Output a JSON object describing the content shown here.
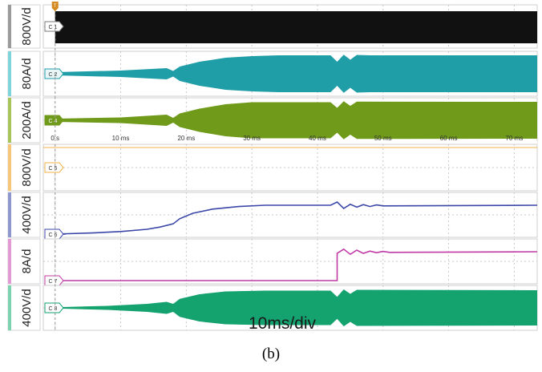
{
  "caption": "(b)",
  "timebase_label": "10ms/div",
  "trigger_marker": "T",
  "chart_data": {
    "type": "line",
    "title": "",
    "xlabel": "",
    "x_unit": "ms",
    "xlim": [
      -1.8,
      73.5
    ],
    "x_ticks": [
      {
        "value": 0,
        "label": "0 s"
      },
      {
        "value": 10,
        "label": "10 ms"
      },
      {
        "value": 20,
        "label": "20 ms"
      },
      {
        "value": 30,
        "label": "30 ms"
      },
      {
        "value": 40,
        "label": "40 ms"
      },
      {
        "value": 50,
        "label": "50 ms"
      },
      {
        "value": 60,
        "label": "60 ms"
      },
      {
        "value": 70,
        "label": "70 ms"
      }
    ],
    "grid": true,
    "channels": [
      {
        "name": "C 1",
        "scale": "800V/d",
        "color": "#111111",
        "badge_color": "#ffffff",
        "edge_color": "#9a9a9a",
        "kind": "block",
        "start_ms": 0
      },
      {
        "name": "C 2",
        "scale": "80A/d",
        "color": "#1f9ea8",
        "badge_color": "#e8f6f7",
        "edge_color": "#7fd3da",
        "kind": "envelope",
        "envelope": [
          [
            0,
            0.08
          ],
          [
            10,
            0.16
          ],
          [
            17,
            0.28
          ],
          [
            18,
            0.14
          ],
          [
            19,
            0.36
          ],
          [
            22,
            0.6
          ],
          [
            26,
            0.8
          ],
          [
            30,
            0.88
          ],
          [
            34,
            0.92
          ],
          [
            42,
            0.92
          ],
          [
            43,
            0.6
          ],
          [
            44,
            0.95
          ],
          [
            45,
            0.7
          ],
          [
            46,
            0.94
          ],
          [
            48,
            0.92
          ],
          [
            73.5,
            0.92
          ]
        ]
      },
      {
        "name": "C 4",
        "scale": "200A/d",
        "color": "#6f9a1a",
        "badge_color": "#6f9a1a",
        "edge_color": "#a6c45a",
        "kind": "envelope",
        "envelope": [
          [
            0,
            0.08
          ],
          [
            10,
            0.14
          ],
          [
            17,
            0.28
          ],
          [
            18,
            0.12
          ],
          [
            19,
            0.34
          ],
          [
            22,
            0.58
          ],
          [
            26,
            0.8
          ],
          [
            30,
            0.9
          ],
          [
            42,
            0.9
          ],
          [
            43,
            0.62
          ],
          [
            44,
            0.95
          ],
          [
            45,
            0.72
          ],
          [
            46,
            0.93
          ],
          [
            73.5,
            0.92
          ]
        ]
      },
      {
        "name": "C 5",
        "scale": "800V/d",
        "color": "#f3b24a",
        "badge_color": "#ffffff",
        "edge_color": "#f6c778",
        "kind": "flat",
        "level": 0.85
      },
      {
        "name": "C 6",
        "scale": "400V/d",
        "color": "#3b47a8",
        "badge_color": "#ffffff",
        "edge_color": "#8f97cf",
        "kind": "trace",
        "points": [
          [
            0,
            0
          ],
          [
            6,
            0.04
          ],
          [
            10,
            0.08
          ],
          [
            14,
            0.15
          ],
          [
            16,
            0.22
          ],
          [
            18,
            0.32
          ],
          [
            19,
            0.48
          ],
          [
            21,
            0.65
          ],
          [
            24,
            0.78
          ],
          [
            28,
            0.86
          ],
          [
            32,
            0.9
          ],
          [
            42,
            0.9
          ],
          [
            43,
            1.0
          ],
          [
            44,
            0.8
          ],
          [
            45,
            0.93
          ],
          [
            46,
            0.84
          ],
          [
            47,
            0.92
          ],
          [
            48,
            0.86
          ],
          [
            49,
            0.91
          ],
          [
            50,
            0.88
          ],
          [
            73.5,
            0.9
          ]
        ]
      },
      {
        "name": "C 7",
        "scale": "8A/d",
        "color": "#c03aa6",
        "badge_color": "#ffffff",
        "edge_color": "#e19bd2",
        "kind": "trace",
        "points": [
          [
            0,
            0
          ],
          [
            43,
            0
          ],
          [
            43,
            0.85
          ],
          [
            44,
            0.98
          ],
          [
            45,
            0.82
          ],
          [
            46,
            0.95
          ],
          [
            47,
            0.85
          ],
          [
            48,
            0.92
          ],
          [
            49,
            0.87
          ],
          [
            50,
            0.91
          ],
          [
            51,
            0.88
          ],
          [
            73.5,
            0.9
          ]
        ]
      },
      {
        "name": "C 8",
        "scale": "400V/d",
        "color": "#14a26f",
        "badge_color": "#ffffff",
        "edge_color": "#7dd2b0",
        "kind": "envelope",
        "envelope": [
          [
            0,
            0.03
          ],
          [
            8,
            0.1
          ],
          [
            14,
            0.2
          ],
          [
            17,
            0.3
          ],
          [
            18,
            0.2
          ],
          [
            19,
            0.45
          ],
          [
            22,
            0.68
          ],
          [
            26,
            0.82
          ],
          [
            32,
            0.86
          ],
          [
            42,
            0.86
          ],
          [
            43,
            0.55
          ],
          [
            44,
            0.92
          ],
          [
            45,
            0.7
          ],
          [
            46,
            0.9
          ],
          [
            73.5,
            0.88
          ]
        ]
      }
    ]
  }
}
